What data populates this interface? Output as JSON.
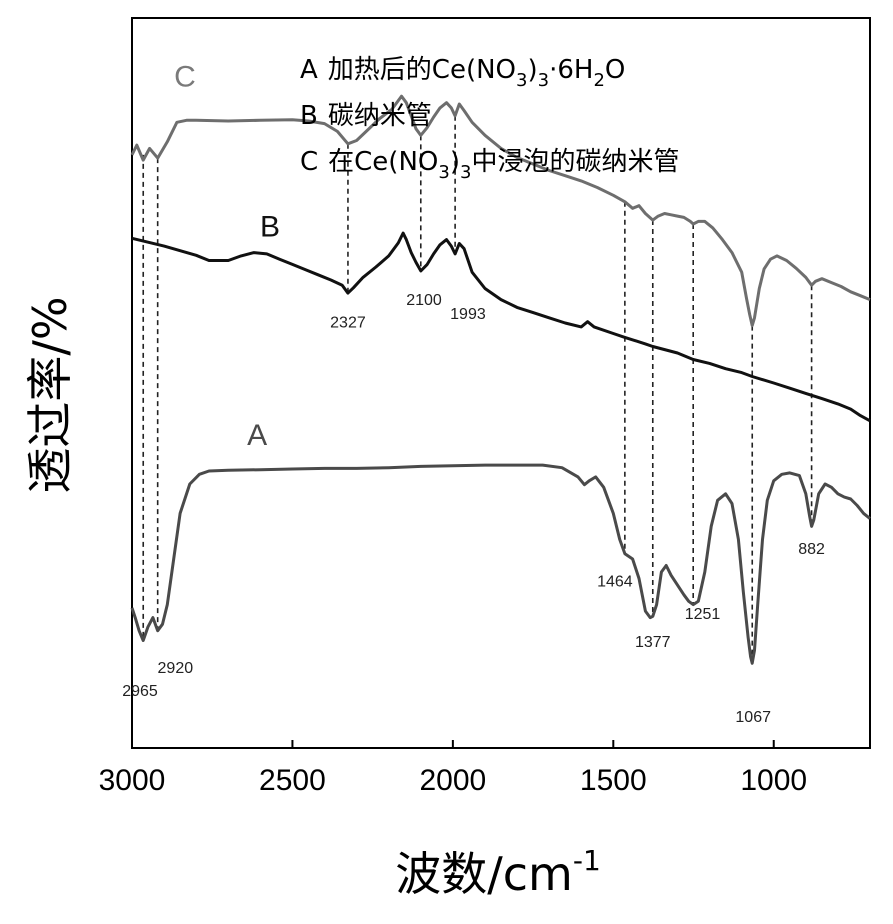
{
  "chart_data": {
    "type": "line",
    "xlabel": "波数/cm",
    "xlabel_sup": "-1",
    "ylabel": "透过率/%",
    "xlim": [
      3000,
      700
    ],
    "x_reversed": true,
    "xticks": [
      3000,
      2500,
      2000,
      1500,
      1000
    ],
    "grid": false,
    "legend_position": "top-right",
    "legend": [
      {
        "key": "A",
        "text": "加热后的Ce(NO",
        "sub1": "3",
        "mid": ")",
        "sub2": "3",
        "tail": "·6H",
        "sub3": "2",
        "end": "O"
      },
      {
        "key": "B",
        "text": "碳纳米管"
      },
      {
        "key": "C",
        "text": "在Ce(NO",
        "sub1": "3",
        "mid": ")",
        "sub2": "3",
        "tail": "中浸泡的碳纳米管"
      }
    ],
    "series": [
      {
        "name": "C",
        "color": "#6e6e6e",
        "points": [
          [
            3000,
            0.79
          ],
          [
            2985,
            0.805
          ],
          [
            2965,
            0.782
          ],
          [
            2945,
            0.8
          ],
          [
            2920,
            0.785
          ],
          [
            2890,
            0.81
          ],
          [
            2860,
            0.84
          ],
          [
            2830,
            0.843
          ],
          [
            2800,
            0.843
          ],
          [
            2700,
            0.842
          ],
          [
            2600,
            0.843
          ],
          [
            2500,
            0.844
          ],
          [
            2450,
            0.842
          ],
          [
            2400,
            0.838
          ],
          [
            2360,
            0.826
          ],
          [
            2327,
            0.807
          ],
          [
            2300,
            0.812
          ],
          [
            2270,
            0.826
          ],
          [
            2230,
            0.845
          ],
          [
            2190,
            0.86
          ],
          [
            2160,
            0.88
          ],
          [
            2145,
            0.87
          ],
          [
            2130,
            0.85
          ],
          [
            2115,
            0.83
          ],
          [
            2100,
            0.82
          ],
          [
            2080,
            0.832
          ],
          [
            2060,
            0.848
          ],
          [
            2040,
            0.862
          ],
          [
            2020,
            0.87
          ],
          [
            2005,
            0.862
          ],
          [
            1993,
            0.85
          ],
          [
            1980,
            0.868
          ],
          [
            1965,
            0.858
          ],
          [
            1940,
            0.84
          ],
          [
            1900,
            0.82
          ],
          [
            1850,
            0.8
          ],
          [
            1800,
            0.786
          ],
          [
            1750,
            0.776
          ],
          [
            1700,
            0.766
          ],
          [
            1650,
            0.758
          ],
          [
            1600,
            0.75
          ],
          [
            1550,
            0.74
          ],
          [
            1500,
            0.728
          ],
          [
            1464,
            0.718
          ],
          [
            1440,
            0.708
          ],
          [
            1420,
            0.712
          ],
          [
            1400,
            0.7
          ],
          [
            1377,
            0.69
          ],
          [
            1360,
            0.696
          ],
          [
            1340,
            0.7
          ],
          [
            1320,
            0.698
          ],
          [
            1300,
            0.696
          ],
          [
            1280,
            0.694
          ],
          [
            1260,
            0.688
          ],
          [
            1251,
            0.684
          ],
          [
            1235,
            0.688
          ],
          [
            1215,
            0.688
          ],
          [
            1190,
            0.678
          ],
          [
            1160,
            0.66
          ],
          [
            1130,
            0.64
          ],
          [
            1100,
            0.61
          ],
          [
            1085,
            0.57
          ],
          [
            1075,
            0.545
          ],
          [
            1067,
            0.528
          ],
          [
            1060,
            0.54
          ],
          [
            1045,
            0.585
          ],
          [
            1030,
            0.615
          ],
          [
            1010,
            0.63
          ],
          [
            990,
            0.635
          ],
          [
            960,
            0.628
          ],
          [
            930,
            0.616
          ],
          [
            900,
            0.602
          ],
          [
            882,
            0.59
          ],
          [
            870,
            0.596
          ],
          [
            850,
            0.6
          ],
          [
            820,
            0.594
          ],
          [
            790,
            0.588
          ],
          [
            760,
            0.58
          ],
          [
            730,
            0.574
          ],
          [
            700,
            0.568
          ]
        ]
      },
      {
        "name": "B",
        "color": "#111111",
        "points": [
          [
            3000,
            0.662
          ],
          [
            2900,
            0.65
          ],
          [
            2800,
            0.636
          ],
          [
            2760,
            0.628
          ],
          [
            2700,
            0.628
          ],
          [
            2660,
            0.635
          ],
          [
            2620,
            0.64
          ],
          [
            2580,
            0.638
          ],
          [
            2540,
            0.63
          ],
          [
            2500,
            0.622
          ],
          [
            2460,
            0.614
          ],
          [
            2420,
            0.606
          ],
          [
            2380,
            0.598
          ],
          [
            2345,
            0.59
          ],
          [
            2327,
            0.578
          ],
          [
            2310,
            0.586
          ],
          [
            2280,
            0.602
          ],
          [
            2240,
            0.618
          ],
          [
            2200,
            0.635
          ],
          [
            2170,
            0.655
          ],
          [
            2155,
            0.67
          ],
          [
            2145,
            0.66
          ],
          [
            2130,
            0.64
          ],
          [
            2115,
            0.625
          ],
          [
            2100,
            0.612
          ],
          [
            2080,
            0.622
          ],
          [
            2060,
            0.638
          ],
          [
            2040,
            0.652
          ],
          [
            2020,
            0.66
          ],
          [
            2005,
            0.65
          ],
          [
            1993,
            0.638
          ],
          [
            1980,
            0.654
          ],
          [
            1965,
            0.646
          ],
          [
            1940,
            0.61
          ],
          [
            1900,
            0.585
          ],
          [
            1850,
            0.568
          ],
          [
            1800,
            0.556
          ],
          [
            1750,
            0.548
          ],
          [
            1700,
            0.54
          ],
          [
            1650,
            0.532
          ],
          [
            1600,
            0.526
          ],
          [
            1580,
            0.534
          ],
          [
            1560,
            0.526
          ],
          [
            1500,
            0.516
          ],
          [
            1464,
            0.51
          ],
          [
            1400,
            0.5
          ],
          [
            1377,
            0.496
          ],
          [
            1300,
            0.486
          ],
          [
            1251,
            0.476
          ],
          [
            1200,
            0.47
          ],
          [
            1150,
            0.462
          ],
          [
            1100,
            0.456
          ],
          [
            1067,
            0.45
          ],
          [
            1000,
            0.44
          ],
          [
            950,
            0.432
          ],
          [
            900,
            0.424
          ],
          [
            850,
            0.416
          ],
          [
            800,
            0.408
          ],
          [
            760,
            0.4
          ],
          [
            730,
            0.39
          ],
          [
            700,
            0.382
          ]
        ]
      },
      {
        "name": "A",
        "color": "#4a4a4a",
        "points": [
          [
            3000,
            0.095
          ],
          [
            2990,
            0.08
          ],
          [
            2978,
            0.06
          ],
          [
            2965,
            0.045
          ],
          [
            2950,
            0.066
          ],
          [
            2935,
            0.08
          ],
          [
            2920,
            0.06
          ],
          [
            2905,
            0.07
          ],
          [
            2890,
            0.1
          ],
          [
            2870,
            0.17
          ],
          [
            2850,
            0.24
          ],
          [
            2820,
            0.285
          ],
          [
            2790,
            0.3
          ],
          [
            2760,
            0.305
          ],
          [
            2700,
            0.306
          ],
          [
            2600,
            0.307
          ],
          [
            2500,
            0.308
          ],
          [
            2400,
            0.309
          ],
          [
            2330,
            0.309
          ],
          [
            2300,
            0.309
          ],
          [
            2200,
            0.31
          ],
          [
            2100,
            0.312
          ],
          [
            2000,
            0.313
          ],
          [
            1900,
            0.314
          ],
          [
            1800,
            0.314
          ],
          [
            1720,
            0.314
          ],
          [
            1660,
            0.31
          ],
          [
            1610,
            0.296
          ],
          [
            1590,
            0.284
          ],
          [
            1575,
            0.29
          ],
          [
            1555,
            0.296
          ],
          [
            1530,
            0.28
          ],
          [
            1500,
            0.24
          ],
          [
            1480,
            0.2
          ],
          [
            1464,
            0.178
          ],
          [
            1440,
            0.17
          ],
          [
            1420,
            0.14
          ],
          [
            1400,
            0.09
          ],
          [
            1385,
            0.08
          ],
          [
            1377,
            0.082
          ],
          [
            1365,
            0.1
          ],
          [
            1350,
            0.15
          ],
          [
            1335,
            0.16
          ],
          [
            1320,
            0.145
          ],
          [
            1300,
            0.13
          ],
          [
            1280,
            0.115
          ],
          [
            1265,
            0.105
          ],
          [
            1251,
            0.1
          ],
          [
            1235,
            0.105
          ],
          [
            1215,
            0.15
          ],
          [
            1195,
            0.22
          ],
          [
            1175,
            0.26
          ],
          [
            1150,
            0.27
          ],
          [
            1130,
            0.255
          ],
          [
            1110,
            0.2
          ],
          [
            1095,
            0.12
          ],
          [
            1080,
            0.05
          ],
          [
            1072,
            0.02
          ],
          [
            1067,
            0.01
          ],
          [
            1060,
            0.03
          ],
          [
            1050,
            0.1
          ],
          [
            1035,
            0.2
          ],
          [
            1020,
            0.26
          ],
          [
            1000,
            0.29
          ],
          [
            975,
            0.3
          ],
          [
            950,
            0.302
          ],
          [
            920,
            0.298
          ],
          [
            900,
            0.27
          ],
          [
            888,
            0.235
          ],
          [
            882,
            0.22
          ],
          [
            875,
            0.23
          ],
          [
            860,
            0.27
          ],
          [
            840,
            0.285
          ],
          [
            820,
            0.28
          ],
          [
            800,
            0.27
          ],
          [
            780,
            0.265
          ],
          [
            760,
            0.262
          ],
          [
            740,
            0.252
          ],
          [
            720,
            0.24
          ],
          [
            700,
            0.232
          ]
        ]
      }
    ],
    "curve_labels": [
      {
        "text": "C",
        "x": 2835,
        "y": 0.895,
        "color": "#7a7a7a"
      },
      {
        "text": "B",
        "x": 2570,
        "y": 0.665,
        "color": "#111111"
      },
      {
        "text": "A",
        "x": 2610,
        "y": 0.345,
        "color": "#4a4a4a"
      }
    ],
    "peaks": [
      {
        "x": 2965,
        "label": "2965",
        "from": 0.79,
        "to": 0.045,
        "lx": 2975,
        "ly": -0.04
      },
      {
        "x": 2920,
        "label": "2920",
        "from": 0.785,
        "to": 0.06,
        "lx": 2865,
        "ly": -0.005
      },
      {
        "x": 2327,
        "label": "2327",
        "from": 0.807,
        "to": 0.578,
        "lx": 2327,
        "ly": 0.525
      },
      {
        "x": 2100,
        "label": "2100",
        "from": 0.82,
        "to": 0.612,
        "lx": 2090,
        "ly": 0.56
      },
      {
        "x": 1993,
        "label": "1993",
        "from": 0.85,
        "to": 0.638,
        "lx": 1953,
        "ly": 0.538
      },
      {
        "x": 1464,
        "label": "1464",
        "from": 0.718,
        "to": 0.178,
        "lx": 1495,
        "ly": 0.128
      },
      {
        "x": 1377,
        "label": "1377",
        "from": 0.69,
        "to": 0.082,
        "lx": 1377,
        "ly": 0.035
      },
      {
        "x": 1251,
        "label": "1251",
        "from": 0.684,
        "to": 0.1,
        "lx": 1222,
        "ly": 0.078
      },
      {
        "x": 1067,
        "label": "1067",
        "from": 0.528,
        "to": 0.01,
        "lx": 1064,
        "ly": -0.08
      },
      {
        "x": 882,
        "label": "882",
        "from": 0.59,
        "to": 0.22,
        "lx": 882,
        "ly": 0.178
      }
    ],
    "ylim": [
      -0.12,
      1.0
    ]
  }
}
